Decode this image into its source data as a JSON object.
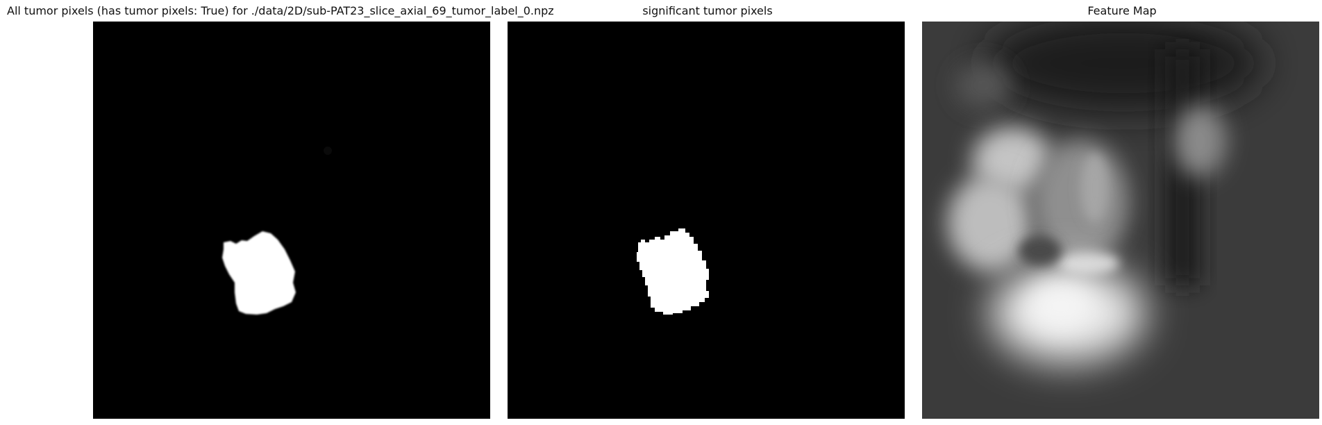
{
  "figure": {
    "panels": [
      {
        "title": "All tumor pixels (has tumor pixels: True) for ./data/2D/sub-PAT23_slice_axial_69_tumor_label_0.npz",
        "background": "#000000",
        "foreground": "#ffffff"
      },
      {
        "title": "significant tumor pixels",
        "background": "#000000",
        "foreground": "#ffffff"
      },
      {
        "title": "Feature Map",
        "background": "#3a3a3a",
        "foreground": "#d9d9d9"
      }
    ]
  }
}
